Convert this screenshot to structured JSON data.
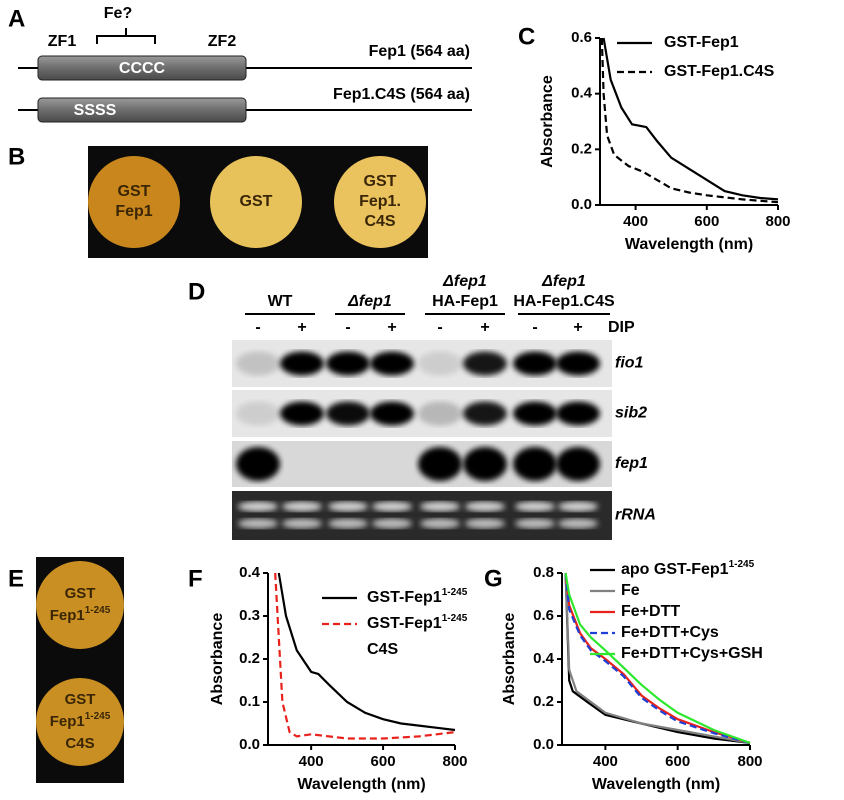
{
  "panel_labels": [
    "A",
    "B",
    "C",
    "D",
    "E",
    "F",
    "G"
  ],
  "panel_a": {
    "fe": "Fe?",
    "zf1": "ZF1",
    "zf2": "ZF2",
    "wt_box": "CCCC",
    "wt_label": "Fep1 (564 aa)",
    "mut_box": "SSSS",
    "mut_label": "Fep1.C4S (564 aa)"
  },
  "panel_b": {
    "spots": [
      [
        "GST",
        "Fep1"
      ],
      [
        "GST"
      ],
      [
        "GST",
        "Fep1.",
        "C4S"
      ]
    ]
  },
  "panel_d": {
    "strains": [
      [
        "WT"
      ],
      [
        "Δfep1"
      ],
      [
        "Δfep1",
        "HA-Fep1"
      ],
      [
        "Δfep1",
        "HA-Fep1.C4S"
      ]
    ],
    "lanes": [
      "-",
      "+",
      "-",
      "+",
      "-",
      "+",
      "-",
      "+"
    ],
    "treatment": "DIP",
    "genes": [
      "fio1",
      "sib2",
      "fep1",
      "rRNA"
    ]
  },
  "panel_e": {
    "spots": [
      {
        "line1": "GST",
        "line2": "Fep1",
        "sup": "1-245"
      },
      {
        "line1": "GST",
        "line2": "Fep1",
        "sup": "1-245",
        "line3": "C4S"
      }
    ]
  },
  "chart_data": [
    {
      "type": "line",
      "xlabel": "Wavelength (nm)",
      "ylabel": "Absorbance",
      "xlim": [
        300,
        800
      ],
      "xticks": [
        400,
        600,
        800
      ],
      "ylim": [
        0,
        0.6
      ],
      "yticks": [
        {
          "value": 0,
          "label": "0.0"
        },
        0.2,
        0.4,
        0.6
      ],
      "series": [
        {
          "name": "GST-Fep1",
          "color": "#000000",
          "dash": false,
          "x": [
            310,
            330,
            360,
            390,
            410,
            430,
            460,
            500,
            550,
            600,
            650,
            700,
            750,
            800
          ],
          "values": [
            0.6,
            0.45,
            0.35,
            0.29,
            0.285,
            0.28,
            0.23,
            0.17,
            0.13,
            0.09,
            0.05,
            0.035,
            0.025,
            0.02
          ]
        },
        {
          "name": "GST-Fep1.C4S",
          "color": "#000000",
          "dash": true,
          "x": [
            305,
            310,
            320,
            340,
            380,
            420,
            460,
            500,
            550,
            600,
            700,
            800
          ],
          "values": [
            0.6,
            0.4,
            0.25,
            0.18,
            0.14,
            0.12,
            0.09,
            0.06,
            0.045,
            0.035,
            0.02,
            0.01
          ]
        }
      ]
    },
    {
      "type": "line",
      "xlabel": "Wavelength (nm)",
      "ylabel": "Absorbance",
      "xlim": [
        280,
        800
      ],
      "xticks": [
        400,
        600,
        800
      ],
      "ylim": [
        0,
        0.4
      ],
      "yticks": [
        {
          "value": 0,
          "label": "0.0"
        },
        0.1,
        0.2,
        0.3,
        0.4
      ],
      "series": [
        {
          "name": "GST-Fep1",
          "sup": "1-245",
          "color": "#000000",
          "dash": false,
          "x": [
            310,
            330,
            360,
            400,
            420,
            450,
            500,
            550,
            600,
            650,
            700,
            750,
            800
          ],
          "values": [
            0.4,
            0.3,
            0.22,
            0.17,
            0.165,
            0.14,
            0.1,
            0.075,
            0.06,
            0.05,
            0.045,
            0.04,
            0.035
          ]
        },
        {
          "name": "GST-Fep1",
          "sup": "1-245",
          "suffix": "C4S",
          "color": "#e8221b",
          "dash": true,
          "x": [
            300,
            310,
            320,
            340,
            360,
            400,
            450,
            500,
            600,
            700,
            800
          ],
          "values": [
            0.4,
            0.25,
            0.1,
            0.03,
            0.02,
            0.025,
            0.02,
            0.015,
            0.015,
            0.02,
            0.03
          ]
        }
      ]
    },
    {
      "type": "line",
      "xlabel": "Wavelength (nm)",
      "ylabel": "Absorbance",
      "xlim": [
        280,
        800
      ],
      "xticks": [
        400,
        600,
        800
      ],
      "ylim": [
        0,
        0.8
      ],
      "yticks": [
        {
          "value": 0,
          "label": "0.0"
        },
        0.2,
        0.4,
        0.6,
        0.8
      ],
      "series": [
        {
          "name": "apo GST-Fep1",
          "sup": "1-245",
          "color": "#000000",
          "dash": false,
          "x": [
            290,
            300,
            310,
            350,
            400,
            500,
            600,
            700,
            800
          ],
          "values": [
            0.8,
            0.3,
            0.25,
            0.2,
            0.14,
            0.1,
            0.06,
            0.03,
            0.01
          ]
        },
        {
          "name": "Fe",
          "color": "#808080",
          "dash": false,
          "x": [
            290,
            300,
            320,
            360,
            400,
            500,
            600,
            700,
            800
          ],
          "values": [
            0.8,
            0.35,
            0.25,
            0.2,
            0.15,
            0.1,
            0.07,
            0.04,
            0.01
          ]
        },
        {
          "name": "Fe+DTT",
          "color": "#e8221b",
          "dash": false,
          "x": [
            290,
            300,
            330,
            360,
            400,
            450,
            500,
            550,
            600,
            700,
            800
          ],
          "values": [
            0.8,
            0.65,
            0.52,
            0.45,
            0.4,
            0.33,
            0.23,
            0.17,
            0.12,
            0.06,
            0.01
          ]
        },
        {
          "name": "Fe+DTT+Cys",
          "color": "#1f3fd6",
          "dash": true,
          "x": [
            290,
            300,
            330,
            360,
            400,
            450,
            500,
            550,
            600,
            700,
            800
          ],
          "values": [
            0.8,
            0.63,
            0.51,
            0.44,
            0.39,
            0.32,
            0.22,
            0.16,
            0.11,
            0.055,
            0.01
          ]
        },
        {
          "name": "Fe+DTT+Cys+GSH",
          "color": "#2ee82e",
          "dash": false,
          "x": [
            290,
            300,
            330,
            360,
            400,
            450,
            500,
            550,
            600,
            700,
            800
          ],
          "values": [
            0.8,
            0.7,
            0.56,
            0.5,
            0.44,
            0.36,
            0.28,
            0.21,
            0.15,
            0.07,
            0.01
          ]
        }
      ]
    }
  ]
}
